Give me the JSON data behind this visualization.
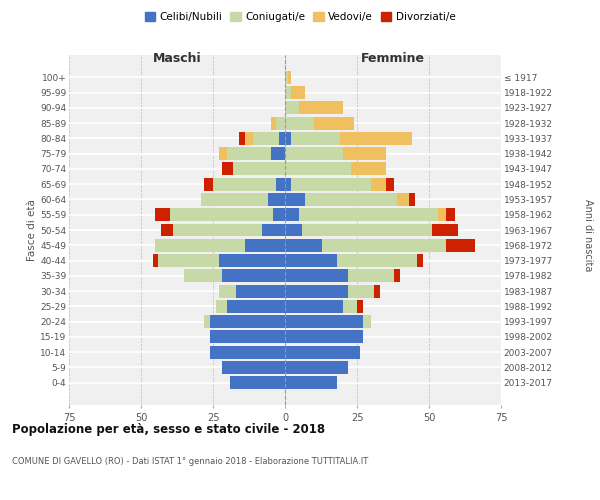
{
  "age_groups": [
    "100+",
    "95-99",
    "90-94",
    "85-89",
    "80-84",
    "75-79",
    "70-74",
    "65-69",
    "60-64",
    "55-59",
    "50-54",
    "45-49",
    "40-44",
    "35-39",
    "30-34",
    "25-29",
    "20-24",
    "15-19",
    "10-14",
    "5-9",
    "0-4"
  ],
  "birth_years": [
    "≤ 1917",
    "1918-1922",
    "1923-1927",
    "1928-1932",
    "1933-1937",
    "1938-1942",
    "1943-1947",
    "1948-1952",
    "1953-1957",
    "1958-1962",
    "1963-1967",
    "1968-1972",
    "1973-1977",
    "1978-1982",
    "1983-1987",
    "1988-1992",
    "1993-1997",
    "1998-2002",
    "2003-2007",
    "2008-2012",
    "2013-2017"
  ],
  "males": {
    "celibi": [
      0,
      0,
      0,
      0,
      2,
      5,
      0,
      3,
      6,
      4,
      8,
      14,
      23,
      22,
      17,
      20,
      26,
      26,
      26,
      22,
      19
    ],
    "coniugati": [
      0,
      0,
      0,
      3,
      9,
      15,
      18,
      22,
      23,
      36,
      31,
      31,
      21,
      13,
      6,
      4,
      2,
      0,
      0,
      0,
      0
    ],
    "vedovi": [
      0,
      0,
      0,
      2,
      3,
      3,
      0,
      0,
      0,
      0,
      0,
      0,
      0,
      0,
      0,
      0,
      0,
      0,
      0,
      0,
      0
    ],
    "divorziati": [
      0,
      0,
      0,
      0,
      2,
      0,
      4,
      3,
      0,
      5,
      4,
      0,
      2,
      0,
      0,
      0,
      0,
      0,
      0,
      0,
      0
    ]
  },
  "females": {
    "celibi": [
      0,
      0,
      0,
      0,
      2,
      0,
      0,
      2,
      7,
      5,
      6,
      13,
      18,
      22,
      22,
      20,
      27,
      27,
      26,
      22,
      18
    ],
    "coniugati": [
      1,
      2,
      5,
      10,
      17,
      20,
      23,
      28,
      32,
      48,
      45,
      43,
      28,
      16,
      9,
      5,
      3,
      0,
      0,
      0,
      0
    ],
    "vedovi": [
      1,
      5,
      15,
      14,
      25,
      15,
      12,
      5,
      4,
      3,
      0,
      0,
      0,
      0,
      0,
      0,
      0,
      0,
      0,
      0,
      0
    ],
    "divorziati": [
      0,
      0,
      0,
      0,
      0,
      0,
      0,
      3,
      2,
      3,
      9,
      10,
      2,
      2,
      2,
      2,
      0,
      0,
      0,
      0,
      0
    ]
  },
  "colors": {
    "celibi": "#4472c4",
    "coniugati": "#c8d9a8",
    "vedovi": "#f0c060",
    "divorziati": "#cc2200"
  },
  "xlim": 75,
  "title": "Popolazione per età, sesso e stato civile - 2018",
  "subtitle": "COMUNE DI GAVELLO (RO) - Dati ISTAT 1° gennaio 2018 - Elaborazione TUTTITALIA.IT",
  "xlabel_left": "Maschi",
  "xlabel_right": "Femmine",
  "ylabel": "Fasce di età",
  "ylabel_right": "Anni di nascita",
  "legend_labels": [
    "Celibi/Nubili",
    "Coniugati/e",
    "Vedovi/e",
    "Divorziati/e"
  ],
  "bg_color": "#ffffff",
  "plot_bg_color": "#f0f0f0"
}
